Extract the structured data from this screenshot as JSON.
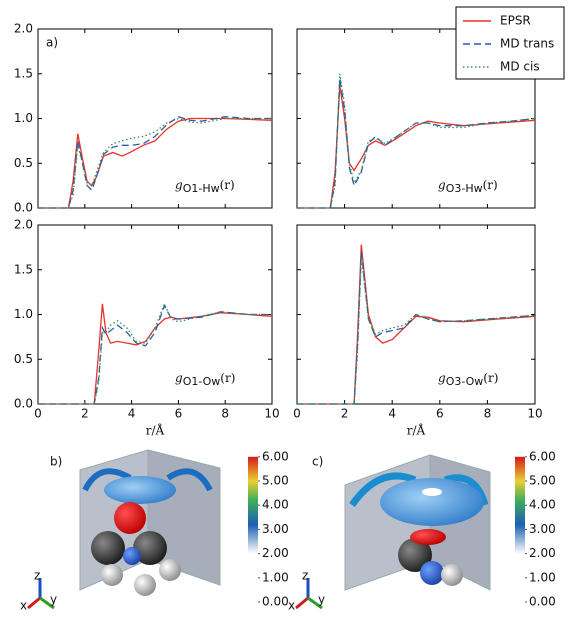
{
  "chart_data": [
    {
      "type": "line",
      "panel_label": "a)",
      "annotation": {
        "symbol": "g",
        "subscript": "O1-Hw",
        "argument": "(r)"
      },
      "x": [
        0,
        1.3,
        1.5,
        1.7,
        1.9,
        2.1,
        2.3,
        2.5,
        2.8,
        3.2,
        3.6,
        4.0,
        4.5,
        5.0,
        5.5,
        6.0,
        6.5,
        7.0,
        8.0,
        9.0,
        10.0
      ],
      "series": [
        {
          "color": "#e8322a",
          "dash": "none",
          "values": [
            0,
            0,
            0.3,
            0.83,
            0.55,
            0.3,
            0.25,
            0.35,
            0.58,
            0.62,
            0.58,
            0.63,
            0.7,
            0.75,
            0.88,
            0.97,
            1.0,
            1.0,
            1.0,
            0.99,
            0.98
          ]
        },
        {
          "color": "#2a5caa",
          "dash": "7,4",
          "values": [
            0,
            0,
            0.2,
            0.75,
            0.5,
            0.25,
            0.2,
            0.35,
            0.6,
            0.68,
            0.7,
            0.7,
            0.72,
            0.8,
            0.93,
            1.02,
            0.98,
            0.97,
            1.02,
            1.0,
            1.0
          ]
        },
        {
          "color": "#3a8a5a",
          "dash": "1.5,2.5",
          "values": [
            0,
            0,
            0.15,
            0.7,
            0.5,
            0.28,
            0.25,
            0.4,
            0.62,
            0.72,
            0.75,
            0.78,
            0.8,
            0.85,
            0.95,
            1.0,
            0.96,
            0.95,
            1.0,
            1.0,
            1.0
          ]
        }
      ],
      "xlim": [
        0,
        10
      ],
      "xticks": [
        0,
        2,
        4,
        6,
        8,
        10
      ],
      "x_tick_labels": false,
      "ylim": [
        0,
        2
      ],
      "yticks": [
        {
          "value": 0,
          "label": "0.0"
        },
        {
          "value": 0.5,
          "label": "0.5"
        },
        {
          "value": 1,
          "label": "1.0"
        },
        {
          "value": 1.5,
          "label": "1.5"
        },
        {
          "value": 2,
          "label": "2.0"
        }
      ],
      "y_tick_labels": true
    },
    {
      "type": "line",
      "annotation": {
        "symbol": "g",
        "subscript": "O3-Hw",
        "argument": "(r)"
      },
      "x": [
        0,
        1.4,
        1.6,
        1.8,
        2.0,
        2.2,
        2.4,
        2.7,
        3.0,
        3.3,
        3.7,
        4.2,
        5.0,
        5.5,
        6.0,
        7.0,
        8.0,
        9.0,
        10.0
      ],
      "series": [
        {
          "name": "EPSR",
          "color": "#e8322a",
          "dash": "none",
          "values": [
            0,
            0,
            0.4,
            1.37,
            1.0,
            0.5,
            0.42,
            0.55,
            0.7,
            0.75,
            0.7,
            0.78,
            0.92,
            0.97,
            0.95,
            0.92,
            0.94,
            0.96,
            0.98
          ]
        },
        {
          "name": "MD trans",
          "color": "#2a5caa",
          "dash": "7,4",
          "values": [
            0,
            0,
            0.3,
            1.45,
            1.1,
            0.45,
            0.25,
            0.4,
            0.72,
            0.8,
            0.7,
            0.8,
            0.95,
            0.95,
            0.92,
            0.92,
            0.95,
            0.97,
            1.0
          ]
        },
        {
          "name": "MD cis",
          "color": "#3a8a5a",
          "dash": "1.5,2.5",
          "values": [
            0,
            0,
            0.25,
            1.5,
            1.15,
            0.5,
            0.28,
            0.42,
            0.75,
            0.78,
            0.72,
            0.8,
            0.95,
            0.95,
            0.9,
            0.9,
            0.95,
            0.97,
            1.0
          ]
        }
      ],
      "legend": "upper right",
      "xlim": [
        0,
        10
      ],
      "xticks": [
        0,
        2,
        4,
        6,
        8,
        10
      ],
      "x_tick_labels": false,
      "ylim": [
        0,
        2
      ],
      "yticks": [
        0,
        0.5,
        1,
        1.5,
        2
      ],
      "y_tick_labels": false
    },
    {
      "type": "line",
      "annotation": {
        "symbol": "g",
        "subscript": "O1-Ow",
        "argument": "(r)"
      },
      "x": [
        0,
        2.4,
        2.6,
        2.75,
        2.9,
        3.1,
        3.4,
        3.8,
        4.2,
        4.6,
        5.0,
        5.4,
        5.7,
        6.0,
        7.0,
        7.8,
        9.0,
        10.0
      ],
      "series": [
        {
          "color": "#e8322a",
          "dash": "none",
          "values": [
            0,
            0,
            0.6,
            1.12,
            0.8,
            0.68,
            0.7,
            0.68,
            0.66,
            0.7,
            0.85,
            0.95,
            0.97,
            0.95,
            0.98,
            1.02,
            1.0,
            0.98
          ]
        },
        {
          "color": "#2a5caa",
          "dash": "7,4",
          "values": [
            0,
            0,
            0.3,
            0.85,
            0.78,
            0.82,
            0.88,
            0.8,
            0.68,
            0.65,
            0.8,
            1.1,
            0.95,
            0.95,
            0.97,
            1.03,
            1.0,
            1.0
          ]
        },
        {
          "color": "#3a8a5a",
          "dash": "1.5,2.5",
          "values": [
            0,
            0,
            0.25,
            0.8,
            0.8,
            0.88,
            0.93,
            0.85,
            0.7,
            0.68,
            0.85,
            1.12,
            0.95,
            0.92,
            0.98,
            1.03,
            1.0,
            1.0
          ]
        }
      ],
      "x_label": "r/Å",
      "xlim": [
        0,
        10
      ],
      "xticks": [
        0,
        2,
        4,
        6,
        8,
        10
      ],
      "x_tick_labels": true,
      "ylim": [
        0,
        2
      ],
      "yticks": [
        {
          "value": 0,
          "label": "0.0"
        },
        {
          "value": 0.5,
          "label": "0.5"
        },
        {
          "value": 1,
          "label": "1.0"
        },
        {
          "value": 1.5,
          "label": "1.5"
        },
        {
          "value": 2,
          "label": "2.0"
        }
      ],
      "y_tick_labels": true
    },
    {
      "type": "line",
      "annotation": {
        "symbol": "g",
        "subscript": "O3-Ow",
        "argument": "(r)"
      },
      "x": [
        0,
        2.4,
        2.55,
        2.7,
        2.85,
        3.0,
        3.3,
        3.6,
        4.0,
        4.5,
        5.0,
        5.5,
        6.0,
        7.0,
        8.0,
        9.0,
        10.0
      ],
      "series": [
        {
          "color": "#e8322a",
          "dash": "none",
          "values": [
            0,
            0,
            0.8,
            1.78,
            1.4,
            1.0,
            0.75,
            0.68,
            0.72,
            0.85,
            0.98,
            0.97,
            0.93,
            0.92,
            0.94,
            0.96,
            0.98
          ]
        },
        {
          "color": "#2a5caa",
          "dash": "7,4",
          "values": [
            0,
            0,
            0.7,
            1.7,
            1.35,
            0.95,
            0.75,
            0.8,
            0.82,
            0.85,
            1.0,
            0.95,
            0.92,
            0.93,
            0.95,
            0.97,
            0.99
          ]
        },
        {
          "color": "#3a8a5a",
          "dash": "1.5,2.5",
          "values": [
            0,
            0,
            0.6,
            1.65,
            1.3,
            0.95,
            0.78,
            0.82,
            0.85,
            0.88,
            1.0,
            0.95,
            0.92,
            0.93,
            0.95,
            0.97,
            0.99
          ]
        }
      ],
      "x_label": "r/Å",
      "xlim": [
        0,
        10
      ],
      "xticks": [
        0,
        2,
        4,
        6,
        8,
        10
      ],
      "x_tick_labels": true,
      "ylim": [
        0,
        2
      ],
      "yticks": [
        0,
        0.5,
        1,
        1.5,
        2
      ],
      "y_tick_labels": false
    }
  ],
  "panels": [
    {
      "label": "b)",
      "axes": {
        "z": "z",
        "x": "x",
        "y": "y"
      },
      "colorbar": [
        {
          "value": 6,
          "label": "6.00"
        },
        {
          "value": 5,
          "label": "5.00"
        },
        {
          "value": 4,
          "label": "4.00"
        },
        {
          "value": 3,
          "label": "3.00"
        },
        {
          "value": 2,
          "label": "2.00"
        },
        {
          "value": 1,
          "label": "1.00"
        },
        {
          "value": 0,
          "label": "0.00"
        }
      ]
    },
    {
      "label": "c)",
      "axes": {
        "z": "z",
        "x": "x",
        "y": "y"
      },
      "colorbar": [
        {
          "value": 6,
          "label": "6.00"
        },
        {
          "value": 5,
          "label": "5.00"
        },
        {
          "value": 4,
          "label": "4.00"
        },
        {
          "value": 3,
          "label": "3.00"
        },
        {
          "value": 2,
          "label": "2.00"
        },
        {
          "value": 1,
          "label": "1.00"
        },
        {
          "value": 0,
          "label": "0.00"
        }
      ]
    }
  ]
}
